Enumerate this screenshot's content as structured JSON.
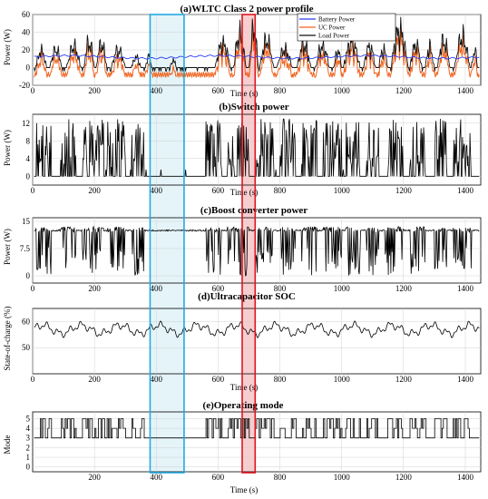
{
  "colors": {
    "battery": "#2a3cf0",
    "uc": "#f0631e",
    "load": "#111111",
    "signal": "#000000",
    "highlight_blue": "#24a9e1",
    "highlight_blue_fill": "#dff2f8",
    "highlight_red": "#e0141e",
    "highlight_red_fill": "#f4c6c8"
  },
  "highlights": [
    {
      "name": "blue-window",
      "x_start": 380,
      "x_end": 490
    },
    {
      "name": "red-window",
      "x_start": 678,
      "x_end": 720
    }
  ],
  "chart_data": [
    {
      "type": "line",
      "title": "(a)WLTC Class 2 power profile",
      "xlabel": "Time (s)",
      "ylabel": "Power (W)",
      "xlim": [
        0,
        1450
      ],
      "ylim": [
        -20,
        60
      ],
      "xticks": [
        0,
        200,
        400,
        600,
        800,
        1000,
        1200,
        1400
      ],
      "yticks": [
        -20,
        0,
        20,
        40,
        60
      ],
      "grid": true,
      "legend_position": "top-right",
      "series": [
        {
          "name": "Battery Power",
          "profile": "battery",
          "baseline": 12
        },
        {
          "name": "UC Power",
          "profile": "uc"
        },
        {
          "name": "Load Power",
          "profile": "load"
        }
      ],
      "drive_bursts": [
        [
          10,
          45,
          28
        ],
        [
          55,
          95,
          30
        ],
        [
          110,
          155,
          35
        ],
        [
          165,
          200,
          42
        ],
        [
          205,
          240,
          38
        ],
        [
          255,
          300,
          30
        ],
        [
          320,
          350,
          18
        ],
        [
          365,
          385,
          20
        ],
        [
          445,
          465,
          12
        ],
        [
          590,
          640,
          40
        ],
        [
          650,
          690,
          55
        ],
        [
          700,
          730,
          62
        ],
        [
          735,
          780,
          45
        ],
        [
          790,
          840,
          30
        ],
        [
          855,
          900,
          38
        ],
        [
          915,
          960,
          34
        ],
        [
          975,
          1000,
          28
        ],
        [
          1005,
          1060,
          42
        ],
        [
          1070,
          1110,
          35
        ],
        [
          1120,
          1150,
          30
        ],
        [
          1160,
          1215,
          62
        ],
        [
          1220,
          1260,
          38
        ],
        [
          1270,
          1300,
          34
        ],
        [
          1310,
          1350,
          45
        ],
        [
          1365,
          1415,
          50
        ],
        [
          1420,
          1440,
          28
        ]
      ]
    },
    {
      "type": "line",
      "title": "(b)Switch power",
      "xlabel": "Time (s)",
      "ylabel": "Power (W)",
      "xlim": [
        0,
        1450
      ],
      "ylim": [
        -2,
        14
      ],
      "xticks": [
        0,
        200,
        400,
        600,
        800,
        1000,
        1200,
        1400
      ],
      "yticks": [
        0,
        4,
        8,
        12
      ],
      "grid": true,
      "baseline": 0,
      "activity_windows": [
        [
          10,
          60
        ],
        [
          90,
          140
        ],
        [
          160,
          230
        ],
        [
          240,
          300
        ],
        [
          320,
          360
        ],
        [
          560,
          610
        ],
        [
          630,
          700
        ],
        [
          720,
          780
        ],
        [
          800,
          850
        ],
        [
          870,
          920
        ],
        [
          940,
          1000
        ],
        [
          1010,
          1060
        ],
        [
          1080,
          1120
        ],
        [
          1140,
          1200
        ],
        [
          1220,
          1270
        ],
        [
          1300,
          1340
        ],
        [
          1360,
          1420
        ]
      ],
      "spike_max": 13
    },
    {
      "type": "line",
      "title": "(c)Boost converter power",
      "xlabel": "",
      "ylabel": "Power (W)",
      "xlim": [
        0,
        1450
      ],
      "ylim": [
        -2,
        16
      ],
      "xticks": [
        0,
        200,
        400,
        600,
        800,
        1000,
        1200,
        1400
      ],
      "yticks": [
        0,
        7.5,
        15
      ],
      "grid": true,
      "baseline": 12.5,
      "activity_windows": [
        [
          10,
          60
        ],
        [
          90,
          140
        ],
        [
          160,
          230
        ],
        [
          240,
          300
        ],
        [
          320,
          360
        ],
        [
          560,
          610
        ],
        [
          630,
          700
        ],
        [
          720,
          780
        ],
        [
          800,
          850
        ],
        [
          870,
          920
        ],
        [
          940,
          1000
        ],
        [
          1010,
          1060
        ],
        [
          1080,
          1120
        ],
        [
          1140,
          1200
        ],
        [
          1220,
          1270
        ],
        [
          1300,
          1340
        ],
        [
          1360,
          1420
        ]
      ],
      "dip_min": 0
    },
    {
      "type": "line",
      "title": "(d)Ultracapacitor SOC",
      "xlabel": "Time (s)",
      "ylabel": "State-of-charge (%)",
      "xlim": [
        0,
        1450
      ],
      "ylim": [
        40,
        65
      ],
      "xticks": [
        0,
        200,
        400,
        600,
        800,
        1000,
        1200,
        1400
      ],
      "yticks": [
        50,
        60
      ],
      "grid": true,
      "mean": 57
    },
    {
      "type": "line",
      "title": "(e)Operating mode",
      "xlabel": "Time (s)",
      "ylabel": "Mode",
      "xlim": [
        0,
        1450
      ],
      "ylim": [
        -0.5,
        5.7
      ],
      "xticks": [
        200,
        400,
        600,
        800,
        1000,
        1200,
        1400
      ],
      "yticks": [
        0,
        1,
        2,
        3,
        4,
        5
      ],
      "grid": true,
      "idle_mode": 3,
      "active_modes": [
        4,
        5
      ],
      "activity_windows": [
        [
          10,
          60
        ],
        [
          90,
          140
        ],
        [
          160,
          230
        ],
        [
          240,
          300
        ],
        [
          320,
          360
        ],
        [
          560,
          610
        ],
        [
          630,
          700
        ],
        [
          720,
          780
        ],
        [
          800,
          850
        ],
        [
          870,
          920
        ],
        [
          940,
          1000
        ],
        [
          1010,
          1060
        ],
        [
          1080,
          1120
        ],
        [
          1140,
          1200
        ],
        [
          1220,
          1270
        ],
        [
          1300,
          1340
        ],
        [
          1360,
          1420
        ]
      ]
    }
  ]
}
